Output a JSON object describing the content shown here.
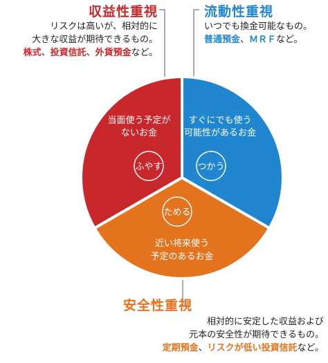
{
  "colors": {
    "red": "#c8282c",
    "blue": "#1f86cf",
    "orange": "#e3731d"
  },
  "top_left": {
    "title": "収益性重視",
    "line1": "リスクは高いが、相対的に",
    "line2": "大きな収益が期待できるもの。",
    "ex1": "株式",
    "sep1": "、",
    "ex2": "投資信託",
    "sep2": "、",
    "ex3": "外貨預金",
    "tail": "など。"
  },
  "top_right": {
    "title": "流動性重視",
    "line1": "いつでも換金可能なもの。",
    "ex1": "普通預金",
    "sep1": "、",
    "ex2": "ＭＲＦ",
    "tail": "など。"
  },
  "bottom": {
    "title": "安全性重視",
    "line1": "相対的に安定した収益および",
    "line2": "元本の安全性が期待できるもの。",
    "ex1": "定期預金",
    "sep1": "、",
    "ex2": "リスクが低い投資信託",
    "tail": "など。"
  },
  "pie": {
    "fuyasu": {
      "line1": "当面使う予定が",
      "line2": "ないお金",
      "label": "ふやす"
    },
    "tsukau": {
      "line1": "すぐにでも使う",
      "line2": "可能性があるお金",
      "label": "つかう"
    },
    "tameru": {
      "line1": "近い将来使う",
      "line2": "予定のあるお金",
      "label": "ためる"
    }
  }
}
